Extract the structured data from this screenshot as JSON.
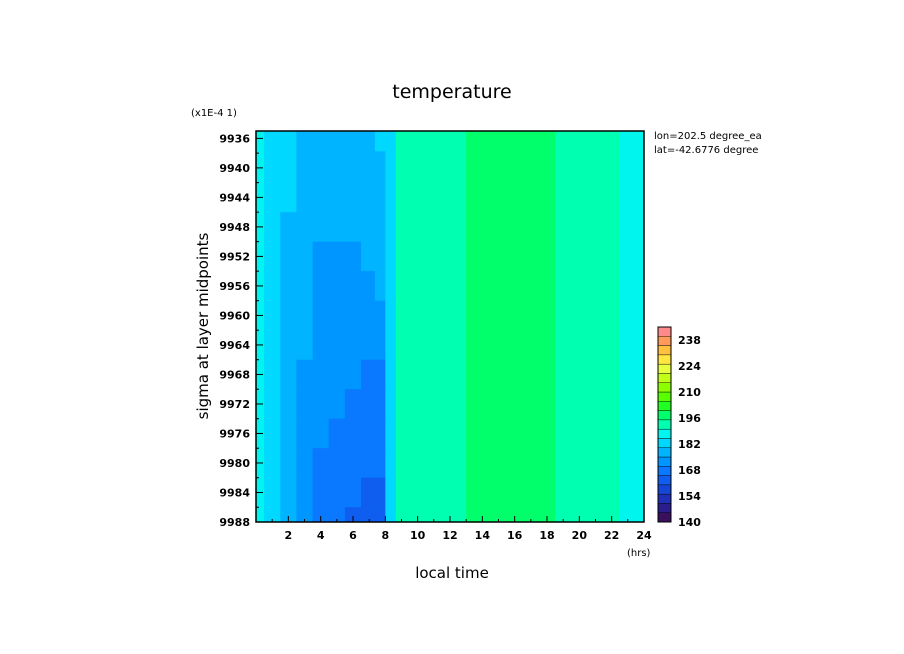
{
  "chart_data": {
    "type": "heatmap",
    "title": "temperature",
    "scale_note": "(x1E-4 1)",
    "xlabel": "local time",
    "xunit": "(hrs)",
    "ylabel": "sigma at layer midpoints",
    "xlim": [
      0,
      24
    ],
    "ylim": [
      9988,
      9935
    ],
    "x_ticks": [
      2,
      4,
      6,
      8,
      10,
      12,
      14,
      16,
      18,
      20,
      22,
      24
    ],
    "y_ticks": [
      9936,
      9940,
      9944,
      9948,
      9952,
      9956,
      9960,
      9964,
      9968,
      9972,
      9976,
      9980,
      9984,
      9988
    ],
    "annotations": [
      "lon=202.5 degree_ea",
      "lat=-42.6776 degree"
    ],
    "colorbar": {
      "min": 140,
      "max": 245,
      "ticks": [
        140,
        154,
        168,
        182,
        196,
        210,
        224,
        238
      ],
      "levels": [
        140,
        145,
        150,
        155,
        160,
        165,
        170,
        175,
        180,
        185,
        190,
        195,
        200,
        205,
        210,
        215,
        220,
        225,
        230,
        235,
        240,
        245
      ],
      "colors": [
        "#3a0f5e",
        "#2b1d8c",
        "#1f2fb8",
        "#1546d6",
        "#0f5ef0",
        "#0a78ff",
        "#0096ff",
        "#00b4ff",
        "#00d8ff",
        "#00f5ee",
        "#00ffb0",
        "#00ff6a",
        "#22ff22",
        "#58ff00",
        "#8cff00",
        "#c0ff18",
        "#e8ff40",
        "#ffe640",
        "#ffc040",
        "#ff9a5a",
        "#ff8a8a"
      ]
    },
    "x": [
      0,
      1,
      2,
      3,
      4,
      5,
      6,
      7,
      7.7,
      8.3,
      9,
      10,
      12,
      14,
      16,
      17,
      18,
      19,
      20,
      22,
      23,
      24
    ],
    "y": [
      9935.5,
      9940,
      9944,
      9948,
      9952,
      9956,
      9960,
      9964,
      9968,
      9972,
      9976,
      9980,
      9984,
      9988
    ],
    "values": [
      [
        187,
        183,
        180,
        179,
        179,
        178,
        178,
        179,
        180,
        181,
        190,
        193,
        194,
        196,
        197,
        196,
        196,
        194,
        193,
        190,
        188,
        187
      ],
      [
        187,
        183,
        180,
        178,
        178,
        177,
        177,
        177,
        179,
        181,
        190,
        193,
        194,
        196,
        197,
        196,
        196,
        194,
        193,
        190,
        188,
        187
      ],
      [
        187,
        183,
        180,
        177,
        175,
        175,
        175,
        176,
        177,
        181,
        190,
        193,
        194,
        196,
        197,
        196,
        196,
        194,
        193,
        190,
        188,
        187
      ],
      [
        187,
        183,
        179,
        176,
        175,
        175,
        175,
        175,
        176,
        181,
        190,
        193,
        194,
        196,
        197,
        197,
        196,
        194,
        193,
        190,
        188,
        187
      ],
      [
        187,
        183,
        179,
        176,
        174,
        174,
        174,
        175,
        175,
        181,
        190,
        193,
        194,
        196,
        197,
        197,
        196,
        194,
        193,
        190,
        188,
        187
      ],
      [
        187,
        183,
        179,
        176,
        174,
        174,
        173,
        174,
        175,
        181,
        190,
        193,
        194,
        196,
        197,
        197,
        196,
        194,
        193,
        190,
        188,
        187
      ],
      [
        187,
        183,
        178,
        175,
        173,
        173,
        173,
        173,
        174,
        181,
        190,
        193,
        194,
        196,
        197,
        197,
        196,
        194,
        193,
        190,
        188,
        187
      ],
      [
        187,
        183,
        178,
        175,
        173,
        172,
        172,
        172,
        173,
        181,
        190,
        193,
        194,
        196,
        197,
        197,
        196,
        194,
        193,
        190,
        188,
        187
      ],
      [
        187,
        182,
        178,
        174,
        172,
        171,
        170,
        169,
        169,
        181,
        190,
        193,
        194,
        196,
        197,
        197,
        196,
        194,
        193,
        190,
        188,
        187
      ],
      [
        187,
        182,
        177,
        174,
        171,
        170,
        169,
        168,
        168,
        181,
        190,
        193,
        194,
        196,
        197,
        197,
        196,
        194,
        193,
        190,
        188,
        187
      ],
      [
        186,
        182,
        177,
        173,
        170,
        169,
        168,
        167,
        167,
        181,
        190,
        193,
        194,
        196,
        197,
        197,
        196,
        194,
        193,
        190,
        188,
        187
      ],
      [
        186,
        181,
        176,
        172,
        169,
        167,
        166,
        165,
        165,
        181,
        190,
        193,
        194,
        196,
        197,
        197,
        196,
        194,
        193,
        190,
        188,
        187
      ],
      [
        186,
        181,
        176,
        171,
        168,
        166,
        165,
        164,
        164,
        181,
        190,
        193,
        194,
        196,
        197,
        197,
        196,
        194,
        193,
        190,
        188,
        187
      ],
      [
        186,
        180,
        175,
        170,
        166,
        165,
        164,
        163,
        163,
        181,
        190,
        193,
        194,
        196,
        197,
        197,
        196,
        194,
        193,
        190,
        188,
        187
      ]
    ]
  }
}
